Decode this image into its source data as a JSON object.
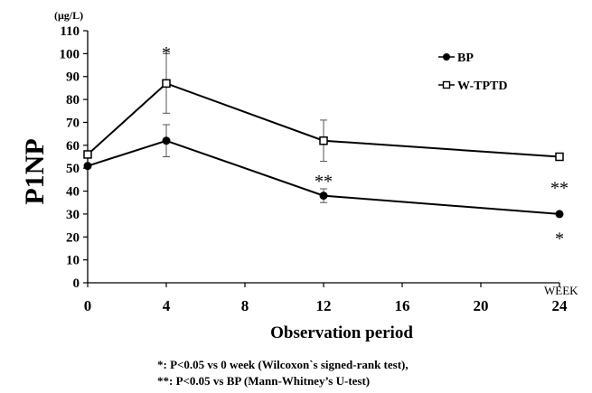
{
  "chart_data": {
    "type": "line",
    "title": "",
    "xlabel": "Observation period",
    "xunit": "WEEK",
    "ylabel": "P1NP",
    "yunit": "(μg/L)",
    "xlim": [
      0,
      24
    ],
    "ylim": [
      0,
      110
    ],
    "xticks": [
      0,
      4,
      8,
      12,
      16,
      20,
      24
    ],
    "yticks": [
      0,
      10,
      20,
      30,
      40,
      50,
      60,
      70,
      80,
      90,
      100,
      110
    ],
    "grid": false,
    "legend_position": "top-right",
    "x": [
      0,
      4,
      12,
      24
    ],
    "series": [
      {
        "name": "BP",
        "marker": "filled-circle",
        "values": [
          51,
          62,
          38,
          30
        ],
        "error": [
          null,
          7,
          3,
          null
        ]
      },
      {
        "name": "W-TPTD",
        "marker": "open-square",
        "values": [
          56,
          87,
          62,
          55
        ],
        "error": [
          null,
          13,
          9,
          null
        ]
      }
    ],
    "annotations": [
      {
        "text": "*",
        "x": 4,
        "y": 101
      },
      {
        "text": "**",
        "x": 12,
        "y": 45
      },
      {
        "text": "**",
        "x": 24,
        "y": 42
      },
      {
        "text": "*",
        "x": 24,
        "y": 20
      }
    ]
  },
  "footnotes": [
    "*: P<0.05 vs 0 week (Wilcoxon`s signed-rank test),",
    "**: P<0.05 vs BP (Mann-Whitney’s U-test)"
  ]
}
